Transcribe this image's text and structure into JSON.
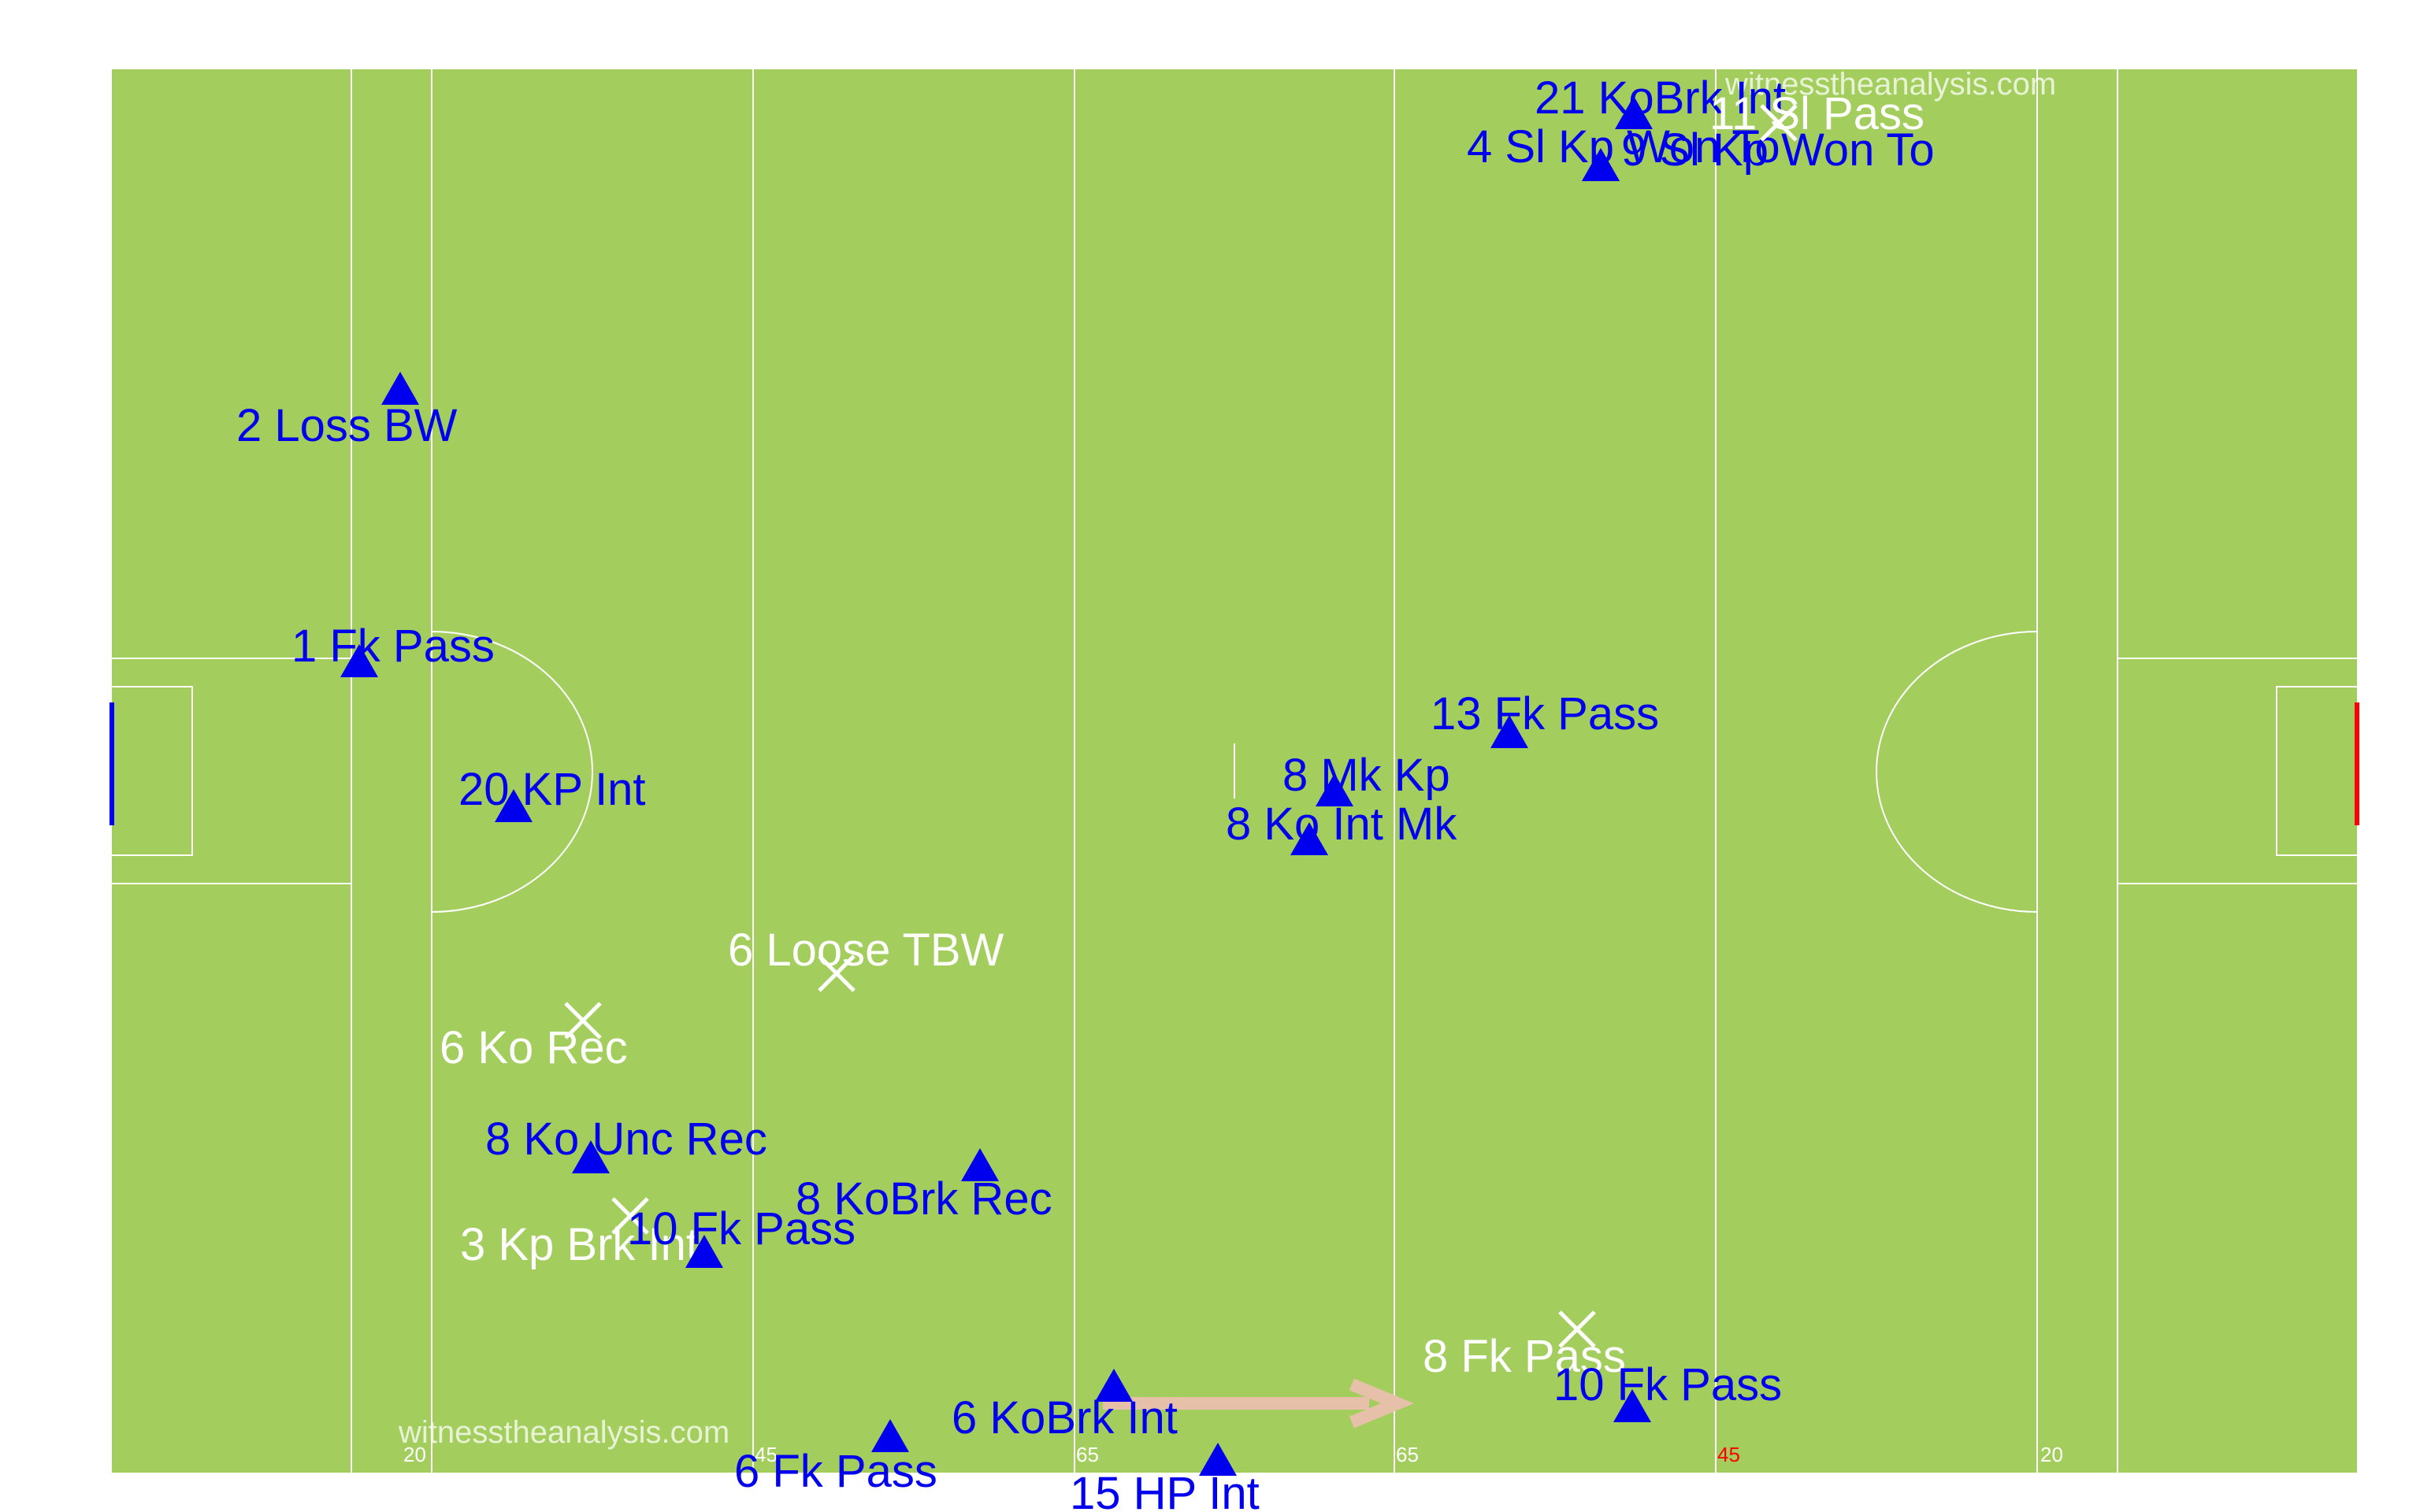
{
  "pitch": {
    "grass_color": "#a3ce5e",
    "line_color": "#ffffff",
    "home_goal_color": "#0000ff",
    "away_goal_color": "#ff0000",
    "line_labels": [
      {
        "text": "20",
        "color": "#ffffff"
      },
      {
        "text": "45",
        "color": "#ffffff"
      },
      {
        "text": "65",
        "color": "#ffffff"
      },
      {
        "text": "65",
        "color": "#ffffff"
      },
      {
        "text": "45",
        "color": "#ff0000"
      },
      {
        "text": "20",
        "color": "#ffffff"
      }
    ]
  },
  "watermarks": [
    "witnesstheanalysis.com",
    "witnesstheanalysis.com"
  ],
  "colors": {
    "team_a": "#0000ee",
    "team_b": "#ffffff",
    "arrow": "#e6c0a8"
  },
  "markers": {
    "team_a": "triangle",
    "team_b": "cross"
  },
  "events": [
    {
      "label": "21 KoBrk Int",
      "team": "a"
    },
    {
      "label": "4 Sl Kp Won To",
      "team": "a"
    },
    {
      "label": "9 Sl Kp Won To",
      "team": "a"
    },
    {
      "label": "11 Sl Pass",
      "team": "b"
    },
    {
      "label": "2 Loss BW",
      "team": "a"
    },
    {
      "label": "1 Fk Pass",
      "team": "a"
    },
    {
      "label": "20 KP Int",
      "team": "a"
    },
    {
      "label": "13 Fk Pass",
      "team": "a"
    },
    {
      "label": "8 Mk Kp",
      "team": "a"
    },
    {
      "label": "8 Ko Int Mk",
      "team": "a"
    },
    {
      "label": "6 Loose TBW",
      "team": "b"
    },
    {
      "label": "6 Ko Rec",
      "team": "b"
    },
    {
      "label": "8 Ko Unc Rec",
      "team": "a"
    },
    {
      "label": "8 KoBrk Rec",
      "team": "a"
    },
    {
      "label": "3 Kp Brk Int",
      "team": "b"
    },
    {
      "label": "10 Fk Pass",
      "team": "a"
    },
    {
      "label": "8 Fk Pass",
      "team": "b"
    },
    {
      "label": "10 Fk Pass",
      "team": "a"
    },
    {
      "label": "6 KoBrk Int",
      "team": "a"
    },
    {
      "label": "6 Fk Pass",
      "team": "a"
    },
    {
      "label": "15 HP Int",
      "team": "a"
    }
  ]
}
